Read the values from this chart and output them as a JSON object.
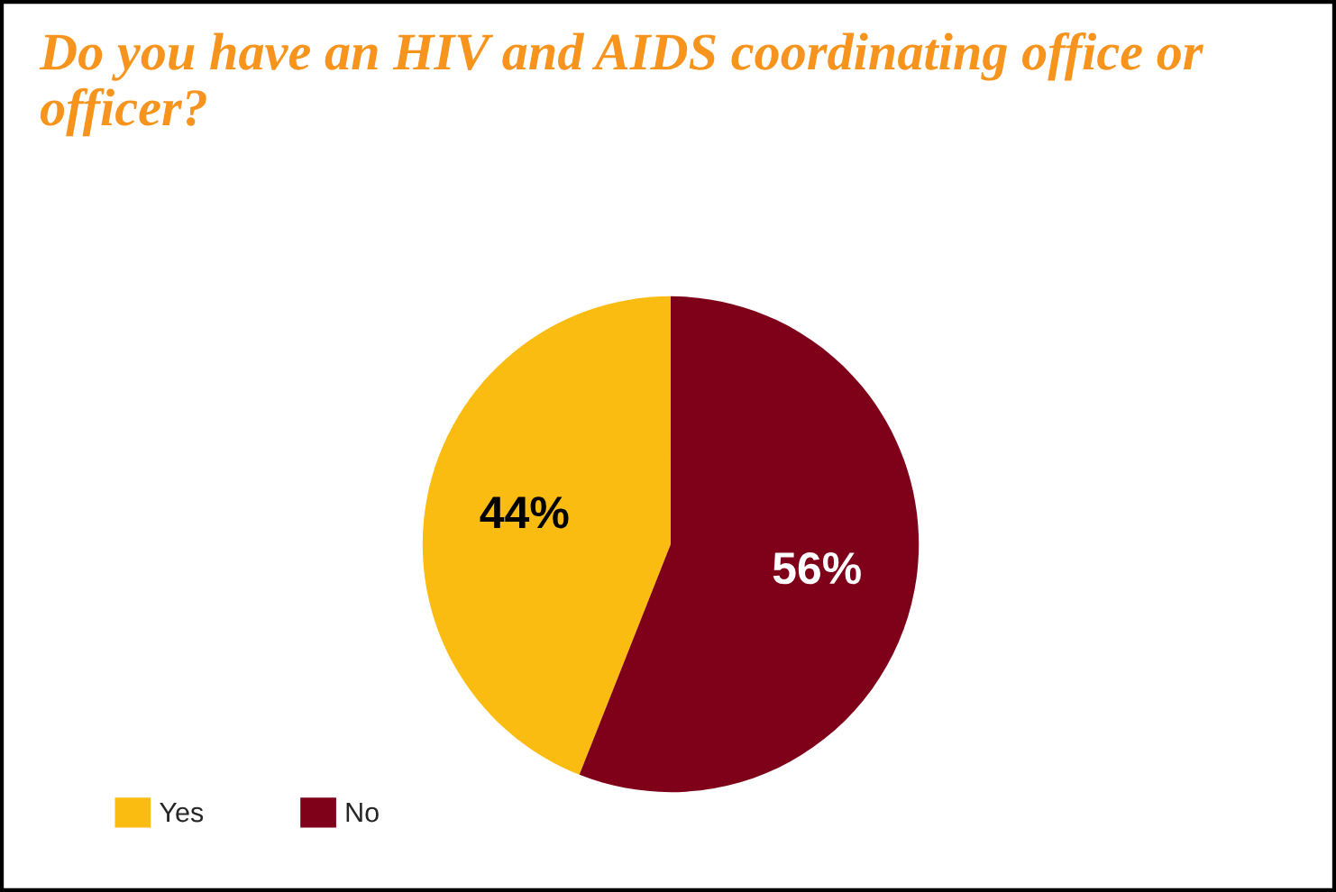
{
  "chart_data": {
    "type": "pie",
    "title": "Do you have an HIV and AIDS coordinating office or officer?",
    "categories": [
      "Yes",
      "No"
    ],
    "values": [
      44,
      56
    ],
    "colors": [
      "#fbbc12",
      "#7f0019"
    ],
    "value_labels": [
      "44%",
      "56%"
    ],
    "legend": "bottom left"
  }
}
